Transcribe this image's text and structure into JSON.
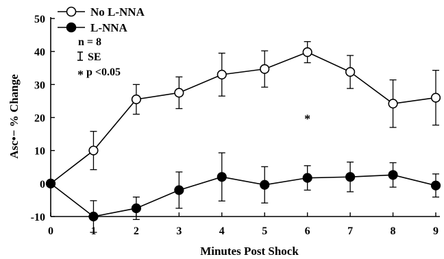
{
  "chart_data": {
    "type": "line",
    "xlabel": "Minutes Post Shock",
    "ylabel": "Asc•− % Change",
    "xlim": [
      0,
      9
    ],
    "ylim": [
      -10,
      50
    ],
    "x_ticks": [
      "0",
      "1",
      "2",
      "3",
      "4",
      "5",
      "6",
      "7",
      "8",
      "9"
    ],
    "y_ticks": [
      "-10",
      "0",
      "10",
      "20",
      "30",
      "40",
      "50"
    ],
    "grid": false,
    "legend_position": "top-left",
    "series": [
      {
        "name": "No L-NNA",
        "marker": "open-circle",
        "x": [
          0,
          1,
          2,
          3,
          4,
          5,
          6,
          7,
          8,
          9
        ],
        "y": [
          0,
          10,
          25.5,
          27.5,
          33,
          34.7,
          39.8,
          33.8,
          24.2,
          26
        ],
        "err": [
          0,
          5.8,
          4.5,
          4.8,
          6.5,
          5.5,
          3.2,
          5,
          7.2,
          8.3
        ]
      },
      {
        "name": "L-NNA",
        "marker": "filled-circle",
        "x": [
          0,
          1,
          2,
          3,
          4,
          5,
          6,
          7,
          8,
          9
        ],
        "y": [
          0,
          -10,
          -7.5,
          -2,
          2,
          -0.4,
          1.7,
          2,
          2.6,
          -0.6
        ],
        "err": [
          0,
          4.8,
          3.4,
          5.5,
          7.3,
          5.5,
          3.7,
          4.5,
          3.7,
          3.5
        ]
      }
    ],
    "annotations": {
      "n": "n = 8",
      "se": "SE",
      "sig": "p <0.05",
      "sig_marker": "*",
      "sig_marker_x": 6,
      "sig_marker_y": 20
    }
  }
}
